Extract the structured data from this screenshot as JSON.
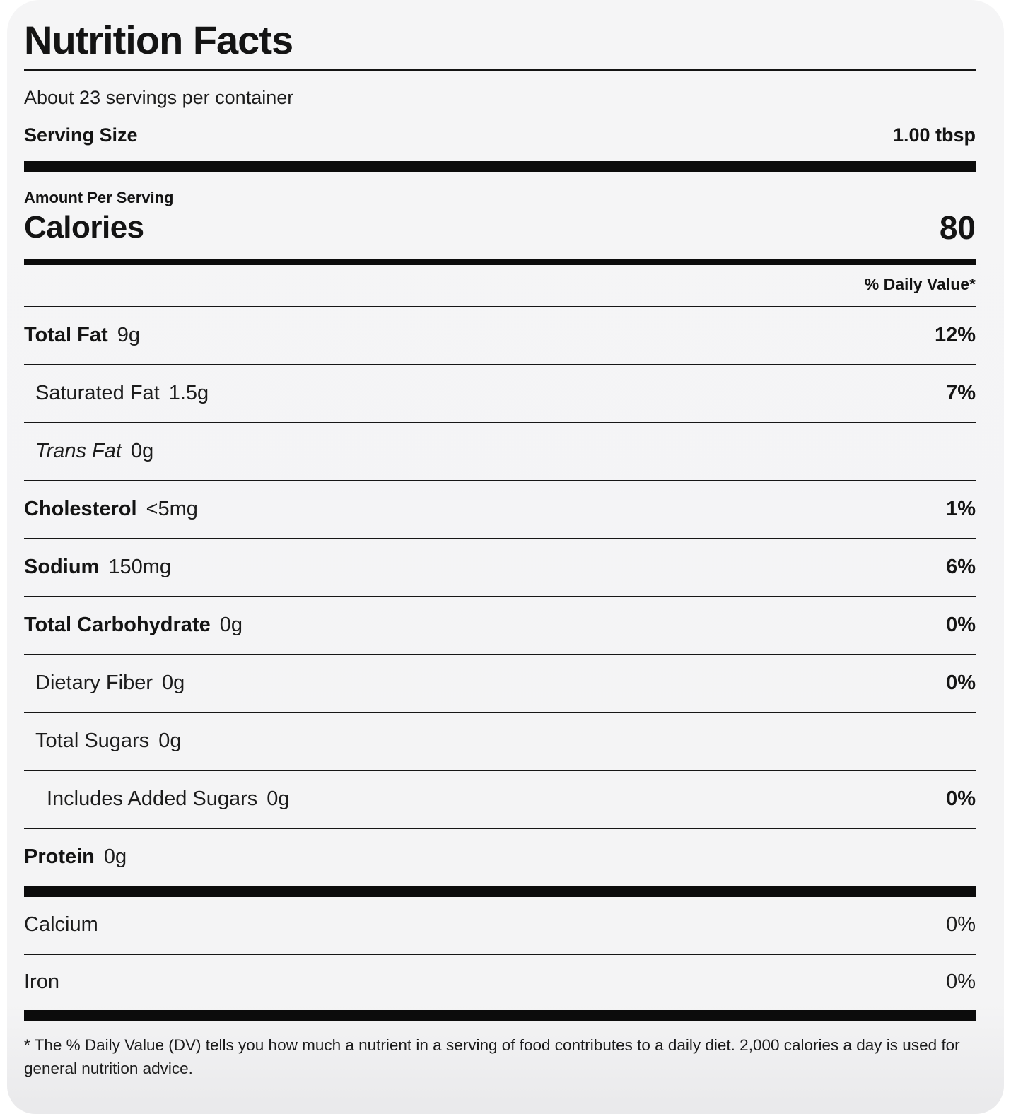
{
  "label": {
    "title": "Nutrition Facts",
    "servings_per_container": "About 23 servings per container",
    "serving_size_label": "Serving Size",
    "serving_size_value": "1.00 tbsp",
    "amount_per_serving": "Amount Per Serving",
    "calories_label": "Calories",
    "calories_value": "80",
    "daily_value_header": "% Daily Value*",
    "rows": [
      {
        "name": "Total Fat",
        "amount": "9g",
        "dv": "12%"
      },
      {
        "name": "Saturated Fat",
        "amount": "1.5g",
        "dv": "7%"
      },
      {
        "name": "Trans Fat",
        "amount": "0g",
        "dv": ""
      },
      {
        "name": "Cholesterol",
        "amount": "<5mg",
        "dv": "1%"
      },
      {
        "name": "Sodium",
        "amount": "150mg",
        "dv": "6%"
      },
      {
        "name": "Total Carbohydrate",
        "amount": "0g",
        "dv": "0%"
      },
      {
        "name": "Dietary Fiber",
        "amount": "0g",
        "dv": "0%"
      },
      {
        "name": "Total Sugars",
        "amount": "0g",
        "dv": ""
      },
      {
        "name": "Includes Added Sugars",
        "amount": "0g",
        "dv": "0%"
      },
      {
        "name": "Protein",
        "amount": "0g",
        "dv": ""
      }
    ],
    "minerals": [
      {
        "name": "Calcium",
        "dv": "0%"
      },
      {
        "name": "Iron",
        "dv": "0%"
      }
    ],
    "footnote": "* The % Daily Value (DV) tells you how much a nutrient in a serving of food contributes to a daily diet. 2,000 calories a day is used for general nutrition advice.",
    "colors": {
      "text": "#1a1a1a",
      "bar": "#0c0c0c",
      "card_bg": "#f4f4f5",
      "page_bg": "#ffffff"
    }
  }
}
